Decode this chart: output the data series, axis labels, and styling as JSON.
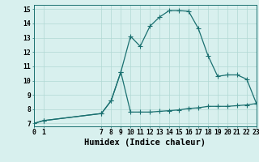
{
  "xlabel": "Humidex (Indice chaleur)",
  "x_values": [
    0,
    1,
    7,
    8,
    9,
    10,
    11,
    12,
    13,
    14,
    15,
    16,
    17,
    18,
    19,
    20,
    21,
    22,
    23
  ],
  "y_upper": [
    7.0,
    7.2,
    7.7,
    8.6,
    10.6,
    13.1,
    12.4,
    13.8,
    14.45,
    14.9,
    14.9,
    14.85,
    13.65,
    11.75,
    10.3,
    10.4,
    10.4,
    10.1,
    8.4
  ],
  "y_lower": [
    7.0,
    7.2,
    7.7,
    8.6,
    10.6,
    7.8,
    7.8,
    7.8,
    7.85,
    7.9,
    7.95,
    8.05,
    8.1,
    8.2,
    8.2,
    8.2,
    8.25,
    8.3,
    8.4
  ],
  "xlim": [
    0,
    23
  ],
  "ylim": [
    6.8,
    15.3
  ],
  "yticks": [
    7,
    8,
    9,
    10,
    11,
    12,
    13,
    14,
    15
  ],
  "xticks": [
    0,
    1,
    7,
    8,
    9,
    10,
    11,
    12,
    13,
    14,
    15,
    16,
    17,
    18,
    19,
    20,
    21,
    22,
    23
  ],
  "line_color": "#1a7070",
  "bg_color": "#d8f0ee",
  "grid_color": "#b0d8d4",
  "tick_label_fontsize": 5.8,
  "xlabel_fontsize": 7.5
}
